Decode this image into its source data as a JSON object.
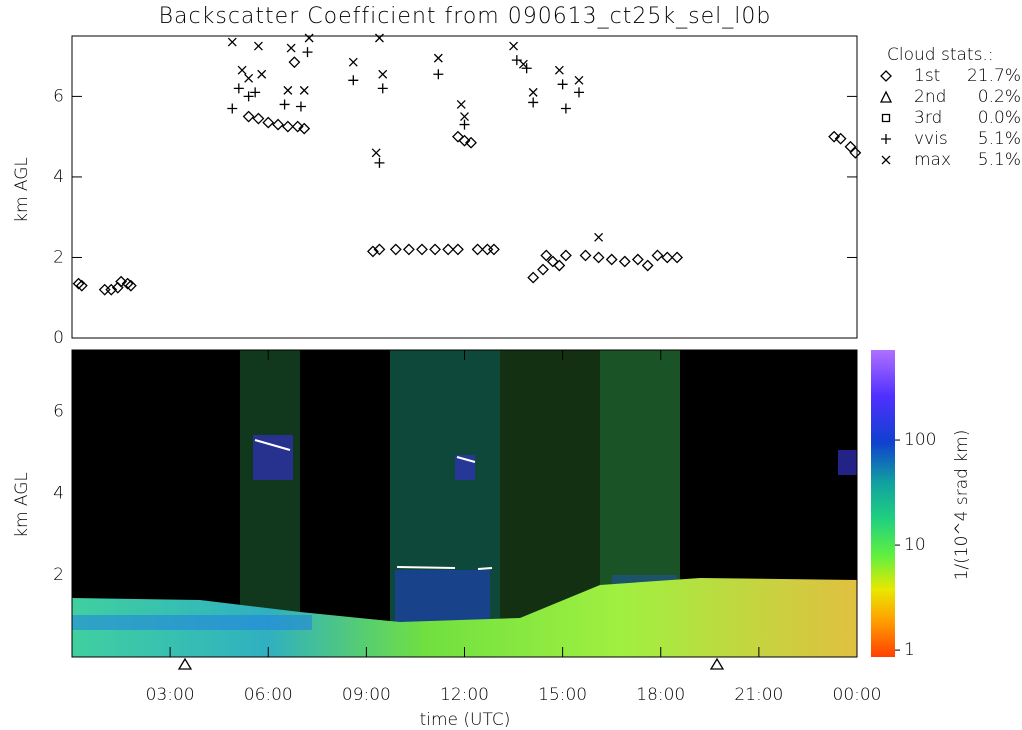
{
  "chart_data": [
    {
      "type": "scatter",
      "title": "Backscatter Coefficient from 090613_ct25k_sel_l0b",
      "y_label": "km AGL",
      "xlim": [
        0,
        24
      ],
      "ylim": [
        0,
        7.5
      ],
      "yticks": [
        0,
        2,
        4,
        6
      ],
      "legend_title": "Cloud stats.:",
      "legend_position": "right",
      "series": [
        {
          "name": "1st",
          "stat": "21.7%",
          "marker": "diamond",
          "color": "#000000",
          "x": [
            0.2,
            0.3,
            1.0,
            1.2,
            1.4,
            1.5,
            1.7,
            1.8,
            5.4,
            5.7,
            6.0,
            6.3,
            6.6,
            6.9,
            7.1,
            6.8,
            9.2,
            9.4,
            9.9,
            10.3,
            10.7,
            11.1,
            11.5,
            11.8,
            11.8,
            12.0,
            12.2,
            12.4,
            12.7,
            12.9,
            14.1,
            14.4,
            14.5,
            14.7,
            14.9,
            15.1,
            15.7,
            16.1,
            16.5,
            16.9,
            17.3,
            17.6,
            17.9,
            18.2,
            18.5,
            23.3,
            23.5,
            23.8,
            23.95
          ],
          "y": [
            1.35,
            1.3,
            1.2,
            1.2,
            1.25,
            1.4,
            1.35,
            1.3,
            5.5,
            5.45,
            5.35,
            5.3,
            5.25,
            5.25,
            5.2,
            6.85,
            2.15,
            2.2,
            2.2,
            2.2,
            2.2,
            2.2,
            2.2,
            2.2,
            5.0,
            4.9,
            4.85,
            2.2,
            2.2,
            2.2,
            1.5,
            1.7,
            2.05,
            1.9,
            1.8,
            2.05,
            2.05,
            2.0,
            1.95,
            1.9,
            1.95,
            1.8,
            2.05,
            2.0,
            2.0,
            5.0,
            4.95,
            4.75,
            4.6
          ]
        },
        {
          "name": "2nd",
          "stat": "0.2%",
          "marker": "triangle",
          "color": "#000000",
          "x": [],
          "y": []
        },
        {
          "name": "3rd",
          "stat": "0.0%",
          "marker": "square",
          "color": "#000000",
          "x": [],
          "y": []
        },
        {
          "name": "vvis",
          "stat": "5.1%",
          "marker": "plus",
          "color": "#000000",
          "x": [
            4.9,
            5.1,
            5.4,
            5.6,
            6.5,
            7.0,
            7.2,
            8.6,
            9.4,
            9.5,
            11.2,
            12.0,
            13.6,
            13.9,
            14.1,
            15.0,
            15.1,
            15.5
          ],
          "y": [
            5.7,
            6.2,
            6.0,
            6.1,
            5.8,
            5.75,
            7.1,
            6.4,
            4.35,
            6.2,
            6.55,
            5.3,
            6.9,
            6.7,
            5.85,
            6.3,
            5.7,
            6.1
          ]
        },
        {
          "name": "max",
          "stat": "5.1%",
          "marker": "cross",
          "color": "#000000",
          "x": [
            4.9,
            5.2,
            5.4,
            5.7,
            5.8,
            6.6,
            6.7,
            7.1,
            7.25,
            8.6,
            9.4,
            9.3,
            9.5,
            11.2,
            11.9,
            12.0,
            13.5,
            13.8,
            14.1,
            14.9,
            15.5,
            16.1
          ],
          "y": [
            7.35,
            6.65,
            6.45,
            7.25,
            6.55,
            6.15,
            7.2,
            6.15,
            7.45,
            6.85,
            7.45,
            4.6,
            6.55,
            6.95,
            5.8,
            5.5,
            7.25,
            6.8,
            6.1,
            6.65,
            6.4,
            2.5
          ]
        }
      ]
    },
    {
      "type": "heatmap",
      "y_label": "km AGL",
      "x_label": "time (UTC)",
      "xlim": [
        0,
        24
      ],
      "ylim": [
        0,
        7.5
      ],
      "yticks": [
        2,
        4,
        6
      ],
      "xticks": [
        {
          "value": 3,
          "label": "03:00"
        },
        {
          "value": 6,
          "label": "06:00"
        },
        {
          "value": 9,
          "label": "09:00"
        },
        {
          "value": 12,
          "label": "12:00"
        },
        {
          "value": 15,
          "label": "15:00"
        },
        {
          "value": 18,
          "label": "18:00"
        },
        {
          "value": 21,
          "label": "21:00"
        },
        {
          "value": 24,
          "label": "00:00"
        }
      ],
      "colorbar_label": "1/(10^4 srad km)",
      "colorbar_scale": "log",
      "colorbar_lim": [
        0.86,
        720
      ],
      "colorbar_ticks": [
        1,
        10,
        100
      ]
    }
  ]
}
